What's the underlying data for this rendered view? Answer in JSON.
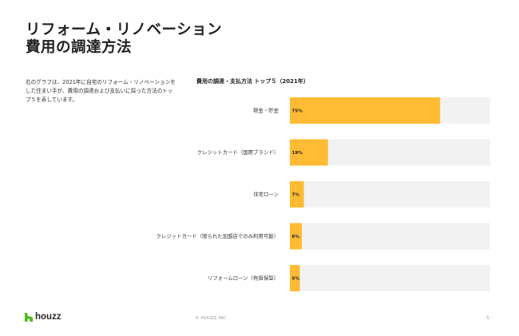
{
  "title": {
    "line1": "リフォーム・リノベーション",
    "line2": "費用の調達方法"
  },
  "description": "右のグラフは、2021年に自宅のリフォーム・リノベーションをした住まい手が、費用の調達および支払いに採った方法のトップ５を表しています。",
  "chart_data": {
    "type": "bar",
    "orientation": "horizontal",
    "title": "費用の調達・支払方法 トップ５（2021年）",
    "categories": [
      "現金・貯金",
      "クレジットカード（国際ブランド）",
      "住宅ローン",
      "クレジットカード（限られた加盟店でのみ利用可能）",
      "リフォームローン（有担保型）"
    ],
    "values": [
      75,
      19,
      7,
      6,
      5
    ],
    "value_labels": [
      "75%",
      "19%",
      "7%",
      "6%",
      "5%"
    ],
    "unit": "%",
    "xlim": [
      0,
      100
    ],
    "bar_color": "#FFBB33",
    "track_color": "#F2F2F2",
    "grid": false,
    "legend": "none"
  },
  "footer": {
    "logo_text": "houzz",
    "copyright": "© HOUZZ INC.",
    "page_number": "5"
  },
  "colors": {
    "logo_green": "#4DBC15",
    "text": "#222222"
  }
}
